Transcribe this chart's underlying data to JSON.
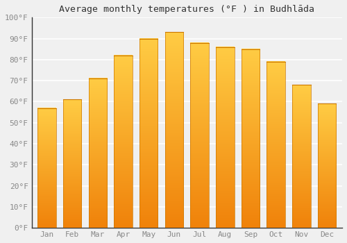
{
  "title": "Average monthly temperatures (°F ) in Budhlāda",
  "months": [
    "Jan",
    "Feb",
    "Mar",
    "Apr",
    "May",
    "Jun",
    "Jul",
    "Aug",
    "Sep",
    "Oct",
    "Nov",
    "Dec"
  ],
  "values": [
    57,
    61,
    71,
    82,
    90,
    93,
    88,
    86,
    85,
    79,
    68,
    59
  ],
  "bar_color_top": "#FFCC44",
  "bar_color_bottom": "#F0820A",
  "bar_edge_top": "#E8A000",
  "ylim": [
    0,
    100
  ],
  "yticks": [
    0,
    10,
    20,
    30,
    40,
    50,
    60,
    70,
    80,
    90,
    100
  ],
  "ytick_labels": [
    "0°F",
    "10°F",
    "20°F",
    "30°F",
    "40°F",
    "50°F",
    "60°F",
    "70°F",
    "80°F",
    "90°F",
    "100°F"
  ],
  "background_color": "#f0f0f0",
  "plot_bg_color": "#f0f0f0",
  "grid_color": "#ffffff",
  "title_fontsize": 9.5,
  "tick_fontsize": 8,
  "tick_color": "#888888",
  "spine_color": "#333333"
}
